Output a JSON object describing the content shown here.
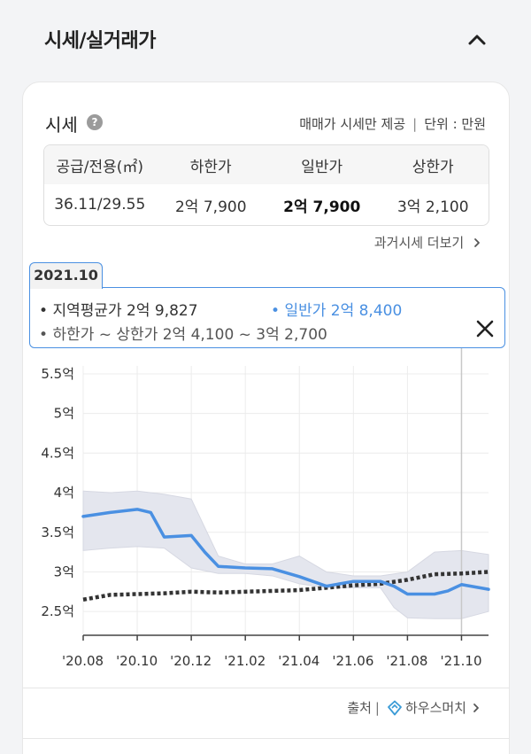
{
  "header": {
    "title": "시세/실거래가"
  },
  "card": {
    "price_label": "시세",
    "help_icon_glyph": "?",
    "note": "매매가 시세만 제공",
    "unit": "단위 : 만원",
    "table": {
      "headers": [
        "공급/전용(㎡)",
        "하한가",
        "일반가",
        "상한가"
      ],
      "values": [
        "36.11/29.55",
        "2억 7,900",
        "2억 7,900",
        "3억 2,100"
      ]
    },
    "past_link": "과거시세 더보기"
  },
  "tooltip": {
    "date": "2021.10",
    "regional_avg": "지역평균가 2억 9,827",
    "general": "일반가 2억 8,400",
    "range": "하한가 ~ 상한가 2억 4,100 ~ 3억 2,700"
  },
  "chart_data": {
    "type": "line",
    "y_unit": "억",
    "ylim": [
      2.2,
      5.6
    ],
    "y_ticks": [
      "5.5억",
      "5억",
      "4.5억",
      "4억",
      "3.5억",
      "3억",
      "2.5억"
    ],
    "y_tick_values": [
      5.5,
      5.0,
      4.5,
      4.0,
      3.5,
      3.0,
      2.5
    ],
    "x_ticks": [
      "'20.08",
      "'20.10",
      "'20.12",
      "'21.02",
      "'21.04",
      "'21.06",
      "'21.08",
      "'21.10"
    ],
    "x_tick_values": [
      0,
      2,
      4,
      6,
      8,
      10,
      12,
      14
    ],
    "xlim": [
      0,
      15
    ],
    "highlight_x": 14,
    "grid": true,
    "series": [
      {
        "key": "general",
        "x": [
          0,
          1,
          2,
          2.5,
          3,
          4,
          4.5,
          5,
          6,
          7,
          8,
          9,
          10,
          11,
          11.5,
          12,
          13,
          13.5,
          14,
          15
        ],
        "values": [
          3.7,
          3.75,
          3.79,
          3.75,
          3.44,
          3.46,
          3.25,
          3.07,
          3.05,
          3.04,
          2.94,
          2.82,
          2.88,
          2.88,
          2.82,
          2.72,
          2.72,
          2.76,
          2.84,
          2.78
        ]
      },
      {
        "key": "regional_avg",
        "x": [
          0,
          1,
          2,
          3,
          4,
          5,
          6,
          7,
          8,
          9,
          10,
          11,
          12,
          13,
          14,
          15
        ],
        "values": [
          2.65,
          2.71,
          2.72,
          2.73,
          2.75,
          2.74,
          2.75,
          2.76,
          2.77,
          2.8,
          2.83,
          2.85,
          2.9,
          2.97,
          2.98,
          3.0
        ]
      },
      {
        "key": "upper",
        "x": [
          0,
          1,
          2,
          3,
          3.5,
          4,
          5,
          6,
          7,
          8,
          9,
          10,
          11,
          12,
          13,
          14,
          15
        ],
        "values": [
          4.02,
          4.0,
          4.02,
          3.98,
          3.95,
          3.92,
          3.2,
          3.1,
          3.1,
          3.2,
          3.0,
          2.95,
          2.95,
          3.0,
          3.25,
          3.27,
          3.22
        ]
      },
      {
        "key": "lower",
        "x": [
          0,
          1,
          2,
          3,
          4,
          5,
          6,
          7,
          8,
          9,
          10,
          11,
          11.5,
          12,
          13,
          14,
          15
        ],
        "values": [
          3.27,
          3.3,
          3.32,
          3.3,
          3.05,
          2.98,
          2.98,
          2.95,
          2.85,
          2.8,
          2.8,
          2.8,
          2.55,
          2.42,
          2.41,
          2.41,
          2.5
        ]
      }
    ],
    "colors": {
      "general": "#4a90e2",
      "regional_avg": "#333333",
      "band": "#e4e6ee",
      "grid": "#ececec",
      "highlight": "#c8c8c8"
    }
  },
  "source": {
    "label": "출처",
    "brand": "하우스머치"
  }
}
